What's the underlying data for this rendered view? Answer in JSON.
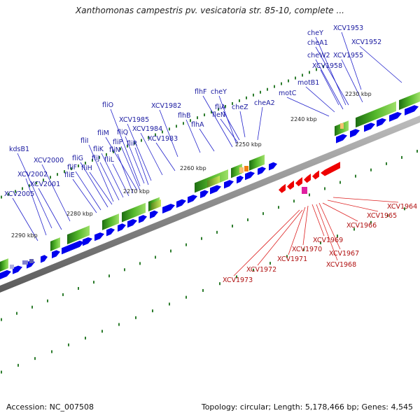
{
  "title": "Xanthomonas campestris pv. vesicatoria str. 85-10, complete ...",
  "footer": {
    "accession": "Accession: NC_007508",
    "topology": "Topology: circular; Length: 5,178,466 bp; Genes: 4,545"
  },
  "colors": {
    "forward_gene": "#0000ee",
    "reverse_gene": "#ee0000",
    "label_forward": "#1a1aa0",
    "label_reverse": "#b01010",
    "scale_tick": "#2e7d2e",
    "backbone": "#888888"
  },
  "kbp_ticks": [
    {
      "label": "2230 kbp"
    },
    {
      "label": "2240 kbp"
    },
    {
      "label": "2250 kbp"
    },
    {
      "label": "2260 kbp"
    },
    {
      "label": "2270 kbp"
    },
    {
      "label": "2280 kbp"
    },
    {
      "label": "2290 kbp"
    }
  ],
  "forward_genes": [
    {
      "label": "XCV1953"
    },
    {
      "label": "cheY"
    },
    {
      "label": "cheA1"
    },
    {
      "label": "XCV1952"
    },
    {
      "label": "cheW2"
    },
    {
      "label": "XCV1955"
    },
    {
      "label": "XCV1958"
    },
    {
      "label": "motB1"
    },
    {
      "label": "motC"
    },
    {
      "label": "flhF"
    },
    {
      "label": "cheY"
    },
    {
      "label": "cheA2"
    },
    {
      "label": "fliA"
    },
    {
      "label": "cheZ"
    },
    {
      "label": "fleN"
    },
    {
      "label": "XCV1982"
    },
    {
      "label": "flhB"
    },
    {
      "label": "flhA"
    },
    {
      "label": "fliO"
    },
    {
      "label": "XCV1985"
    },
    {
      "label": "fliM"
    },
    {
      "label": "fliQ"
    },
    {
      "label": "XCV1984"
    },
    {
      "label": "fliP"
    },
    {
      "label": "fliR"
    },
    {
      "label": "XCV1983"
    },
    {
      "label": "fliI"
    },
    {
      "label": "fliK"
    },
    {
      "label": "fliN"
    },
    {
      "label": "fliG"
    },
    {
      "label": "fliJ"
    },
    {
      "label": "fliL"
    },
    {
      "label": "kdsB1"
    },
    {
      "label": "XCV2000"
    },
    {
      "label": "fliF"
    },
    {
      "label": "fliH"
    },
    {
      "label": "fliE"
    },
    {
      "label": "XCV2002"
    },
    {
      "label": "XCV2001"
    },
    {
      "label": "XCV2005"
    }
  ],
  "reverse_genes": [
    {
      "label": "XCV1964"
    },
    {
      "label": "XCV1965"
    },
    {
      "label": "XCV1966"
    },
    {
      "label": "XCV1969"
    },
    {
      "label": "XCV1970"
    },
    {
      "label": "XCV1967"
    },
    {
      "label": "XCV1971"
    },
    {
      "label": "XCV1968"
    },
    {
      "label": "XCV1972"
    },
    {
      "label": "XCV1973"
    }
  ]
}
